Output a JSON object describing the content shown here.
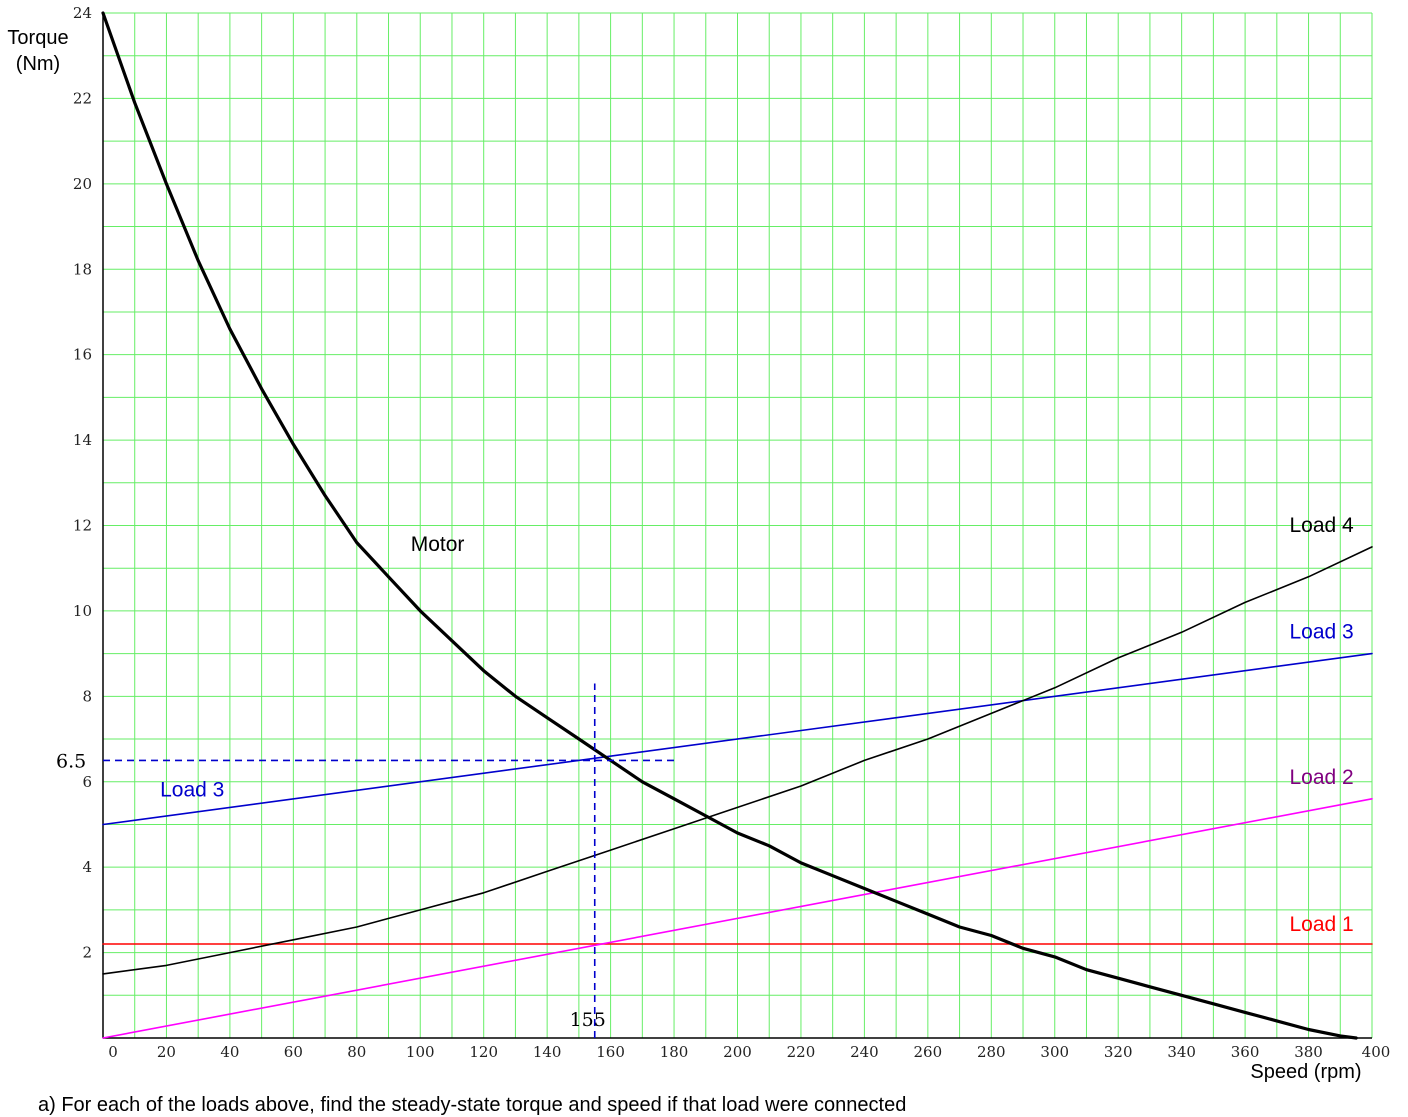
{
  "caption": "a) For each of the loads above, find the steady-state torque and speed if that load were connected",
  "chart_data": {
    "type": "line",
    "xlabel": "Speed  (rpm)",
    "ylabel_lines": [
      "Torque",
      "(Nm)"
    ],
    "xlim": [
      0,
      400
    ],
    "ylim": [
      0,
      24
    ],
    "x_ticks": [
      0,
      20,
      40,
      60,
      80,
      100,
      120,
      140,
      160,
      180,
      200,
      220,
      240,
      260,
      280,
      300,
      320,
      340,
      360,
      380,
      400
    ],
    "y_ticks": [
      2,
      4,
      6,
      8,
      10,
      12,
      14,
      16,
      18,
      20,
      22,
      24
    ],
    "grid": true,
    "x_minor_step": 10,
    "y_minor_step": 1,
    "series": [
      {
        "name": "Motor",
        "color": "#000000",
        "bold": true,
        "x": [
          0,
          10,
          20,
          30,
          40,
          50,
          60,
          70,
          80,
          90,
          100,
          110,
          120,
          130,
          140,
          150,
          160,
          170,
          180,
          190,
          200,
          210,
          220,
          230,
          240,
          250,
          260,
          270,
          280,
          290,
          300,
          310,
          320,
          330,
          340,
          350,
          360,
          370,
          380,
          390,
          395
        ],
        "y": [
          24.0,
          21.9,
          20.0,
          18.2,
          16.6,
          15.2,
          13.9,
          12.7,
          11.6,
          10.8,
          10.0,
          9.3,
          8.6,
          8.0,
          7.5,
          7.0,
          6.5,
          6.0,
          5.6,
          5.2,
          4.8,
          4.5,
          4.1,
          3.8,
          3.5,
          3.2,
          2.9,
          2.6,
          2.4,
          2.1,
          1.9,
          1.6,
          1.4,
          1.2,
          1.0,
          0.8,
          0.6,
          0.4,
          0.2,
          0.05,
          0.0
        ]
      },
      {
        "name": "Load 1",
        "color": "#ff0000",
        "x": [
          0,
          400
        ],
        "y": [
          2.2,
          2.2
        ]
      },
      {
        "name": "Load 2",
        "color": "#ff00ff",
        "x": [
          0,
          400
        ],
        "y": [
          0,
          5.6
        ]
      },
      {
        "name": "Load 3",
        "color": "#0000cc",
        "x": [
          0,
          400
        ],
        "y": [
          5.0,
          9.0
        ]
      },
      {
        "name": "Load 4",
        "color": "#000000",
        "x": [
          0,
          20,
          40,
          60,
          80,
          100,
          120,
          140,
          160,
          180,
          200,
          220,
          240,
          260,
          280,
          300,
          320,
          340,
          360,
          380,
          400
        ],
        "y": [
          1.5,
          1.7,
          2.0,
          2.3,
          2.6,
          3.0,
          3.4,
          3.9,
          4.4,
          4.9,
          5.4,
          5.9,
          6.5,
          7.0,
          7.6,
          8.2,
          8.9,
          9.5,
          10.2,
          10.8,
          11.5
        ]
      }
    ],
    "annotations": [
      {
        "text": "Motor",
        "color": "#000000",
        "x": 97,
        "y": 11.4
      },
      {
        "text": "Load 4",
        "color": "#000000",
        "x": 374,
        "y": 11.85
      },
      {
        "text": "Load 3",
        "color": "#0000cc",
        "x": 374,
        "y": 9.35
      },
      {
        "text": "Load 2",
        "color": "#800080",
        "x": 374,
        "y": 5.95
      },
      {
        "text": "Load 1",
        "color": "#ff0000",
        "x": 374,
        "y": 2.5
      },
      {
        "text": "Load 3",
        "color": "#0000cc",
        "x": 18,
        "y": 5.65
      }
    ],
    "operating_point": {
      "x": 155,
      "y": 6.5,
      "x_label": "155",
      "y_label": "6.5",
      "color": "#0000cc",
      "h_line_x": [
        0,
        180
      ],
      "v_line_y": [
        0,
        8.3
      ]
    }
  }
}
